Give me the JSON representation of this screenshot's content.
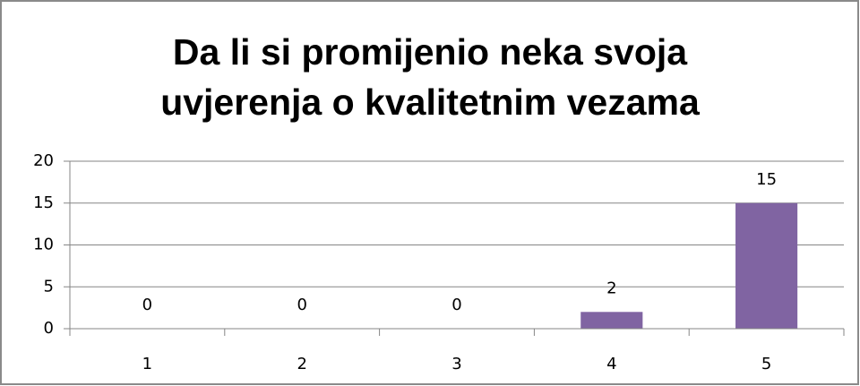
{
  "chart_data": {
    "type": "bar",
    "title": "Da li si promijenio neka svoja uvjerenja o kvalitetnim vezama",
    "categories": [
      "1",
      "2",
      "3",
      "4",
      "5"
    ],
    "values": [
      0,
      0,
      0,
      2,
      15
    ],
    "color": "#8064a2",
    "ylim": [
      0,
      20
    ],
    "yticks": [
      0,
      5,
      10,
      15,
      20
    ],
    "grid": true
  }
}
